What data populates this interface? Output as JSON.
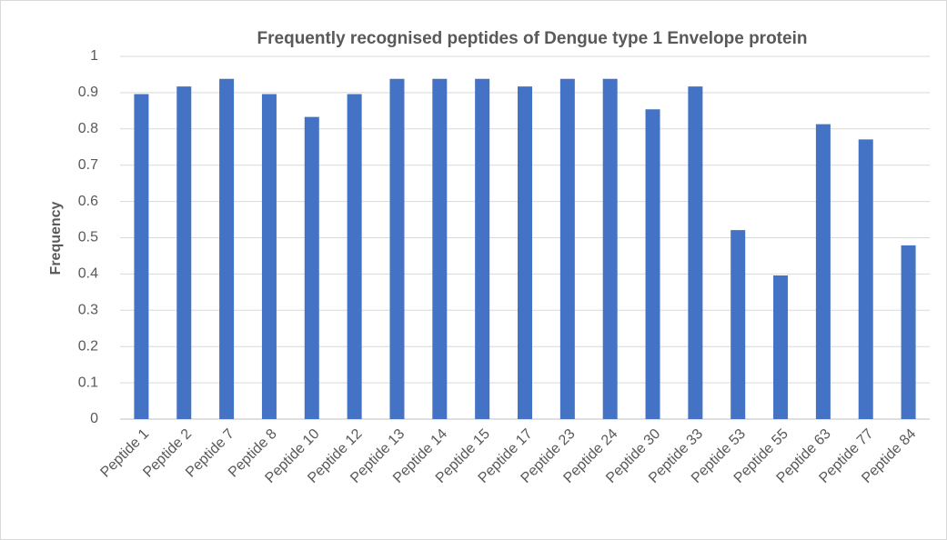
{
  "chart_data": {
    "type": "bar",
    "title": "Frequently recognised peptides of Dengue type 1 Envelope protein",
    "y_label": "Frequency",
    "categories": [
      "Peptide 1",
      "Peptide 2",
      "Peptide 7",
      "Peptide 8",
      "Peptide 10",
      "Peptide 12",
      "Peptide 13",
      "Peptide 14",
      "Peptide 15",
      "Peptide 17",
      "Peptide 23",
      "Peptide 24",
      "Peptide 30",
      "Peptide 33",
      "Peptide 53",
      "Peptide 55",
      "Peptide 63",
      "Peptide 77",
      "Peptide 84"
    ],
    "values": [
      0.896,
      0.917,
      0.938,
      0.896,
      0.833,
      0.896,
      0.938,
      0.938,
      0.938,
      0.917,
      0.938,
      0.938,
      0.854,
      0.917,
      0.521,
      0.396,
      0.813,
      0.771,
      0.479
    ],
    "color": "#4472c4",
    "ylim": [
      0,
      1
    ],
    "yticks": [
      0,
      0.1,
      0.2,
      0.3,
      0.4,
      0.5,
      0.6,
      0.7,
      0.8,
      0.9,
      1
    ],
    "grid": true
  }
}
